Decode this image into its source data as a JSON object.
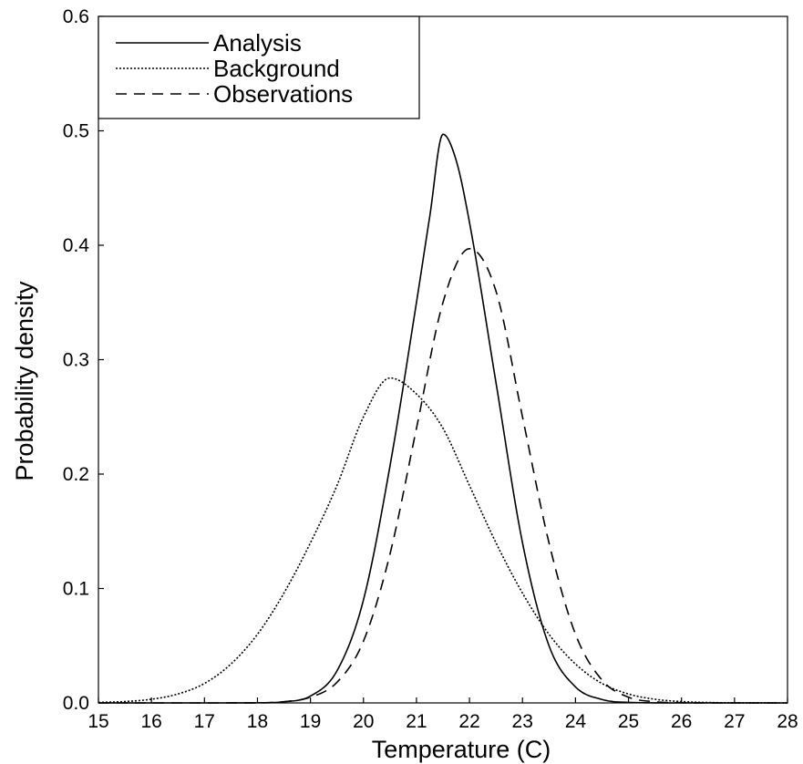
{
  "chart_data": {
    "type": "line",
    "title": "",
    "xlabel": "Temperature (C)",
    "ylabel": "Probability density",
    "xlim": [
      15,
      28
    ],
    "ylim": [
      0,
      0.6
    ],
    "x_ticks": [
      "15",
      "16",
      "17",
      "18",
      "19",
      "20",
      "21",
      "22",
      "23",
      "24",
      "25",
      "26",
      "27",
      "28"
    ],
    "y_ticks": [
      "0.0",
      "0.1",
      "0.2",
      "0.3",
      "0.4",
      "0.5",
      "0.6"
    ],
    "grid": false,
    "legend_position": "top-left",
    "series": [
      {
        "name": "Analysis",
        "line_style": "solid",
        "color": "#000000",
        "x": [
          15,
          17,
          18,
          18.5,
          19,
          19.5,
          20,
          20.5,
          21,
          21.25,
          21.5,
          21.75,
          22,
          22.5,
          23,
          23.5,
          24,
          24.5,
          25,
          26,
          28
        ],
        "y": [
          0,
          0,
          0.0001,
          0.001,
          0.006,
          0.028,
          0.09,
          0.207,
          0.35,
          0.425,
          0.497,
          0.474,
          0.42,
          0.28,
          0.14,
          0.05,
          0.014,
          0.003,
          0.0005,
          0,
          0
        ]
      },
      {
        "name": "Background",
        "line_style": "dotted",
        "color": "#000000",
        "x": [
          15,
          15.5,
          16,
          16.5,
          17,
          17.5,
          18,
          18.5,
          19,
          19.5,
          20,
          20.5,
          21,
          21.5,
          22,
          22.5,
          23,
          23.5,
          24,
          24.5,
          25,
          25.5,
          26,
          27,
          28
        ],
        "y": [
          0.0004,
          0.0012,
          0.0032,
          0.0078,
          0.017,
          0.034,
          0.06,
          0.096,
          0.14,
          0.19,
          0.25,
          0.284,
          0.27,
          0.24,
          0.19,
          0.14,
          0.096,
          0.06,
          0.034,
          0.017,
          0.0078,
          0.0032,
          0.0012,
          0.0001,
          0
        ]
      },
      {
        "name": "Observations",
        "line_style": "dashed",
        "color": "#000000",
        "x": [
          15,
          17,
          18,
          18.5,
          19,
          19.5,
          20,
          20.5,
          21,
          21.5,
          22,
          22.5,
          23,
          23.5,
          24,
          24.5,
          25,
          25.5,
          26,
          27,
          28
        ],
        "y": [
          0,
          0,
          0.0001,
          0.0011,
          0.005,
          0.018,
          0.054,
          0.13,
          0.24,
          0.35,
          0.397,
          0.36,
          0.25,
          0.14,
          0.06,
          0.02,
          0.005,
          0.001,
          0.0002,
          0,
          0
        ]
      }
    ]
  }
}
